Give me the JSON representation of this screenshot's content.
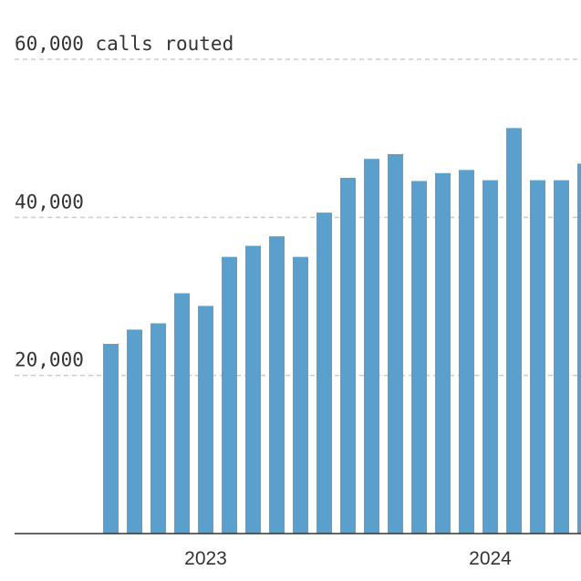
{
  "chart_data": {
    "type": "bar",
    "title": "",
    "xlabel": "",
    "ylabel": "",
    "y_tick_labels": [
      "60,000 calls routed",
      "40,000",
      "20,000"
    ],
    "y_tick_values": [
      60000,
      40000,
      20000
    ],
    "ylim": [
      0,
      60000
    ],
    "grid": true,
    "x_tick_labels": [
      {
        "label": "2023",
        "at_bar": 4
      },
      {
        "label": "2024",
        "at_bar": 16
      }
    ],
    "series": [
      {
        "values": [
          24000,
          25800,
          26600,
          30400,
          28800,
          35000,
          36400,
          37600,
          35000,
          40600,
          45000,
          47400,
          48000,
          44600,
          45600,
          46000,
          44700,
          51300,
          44700,
          44700,
          46800
        ]
      }
    ],
    "colors": {
      "bar": "#5b9fcc",
      "grid": "#cccccc",
      "axis": "#333333",
      "text": "#333333"
    }
  }
}
